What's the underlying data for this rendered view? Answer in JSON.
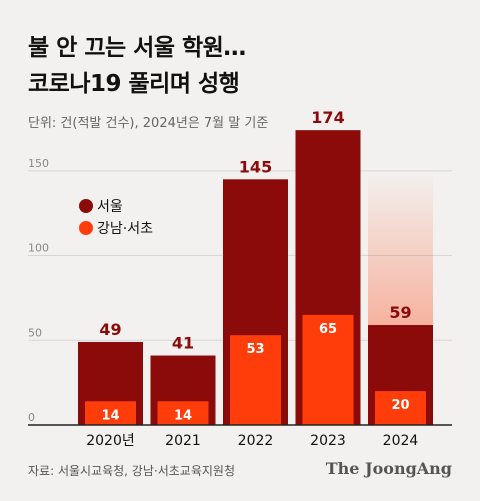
{
  "header": {
    "title_line1": "불 안 끄는 서울 학원…",
    "title_line2": "코로나19 풀리며 성행",
    "subtitle": "단위: 건(적발 건수), 2024년은 7월 말 기준"
  },
  "footer": {
    "source": "자료: 서울시교육청, 강남·서초교육지원청",
    "brand": "The JoongAng"
  },
  "colors": {
    "seoul": "#8b0a0a",
    "gangnam": "#ff3d0a",
    "label_dark": "#8b0a0a",
    "label_light": "#ffffff"
  },
  "chart_data": {
    "type": "bar",
    "categories": [
      "2020년",
      "2021",
      "2022",
      "2023",
      "2024"
    ],
    "series": [
      {
        "name": "서울",
        "values": [
          49,
          41,
          145,
          174,
          59
        ]
      },
      {
        "name": "강남·서초",
        "values": [
          14,
          14,
          53,
          65,
          20
        ]
      }
    ],
    "y_ticks": [
      "0",
      "50",
      "100",
      "150"
    ],
    "ylim": [
      0,
      180
    ],
    "legend_position": "top-left",
    "grid": true,
    "last_bar_faded": true
  }
}
